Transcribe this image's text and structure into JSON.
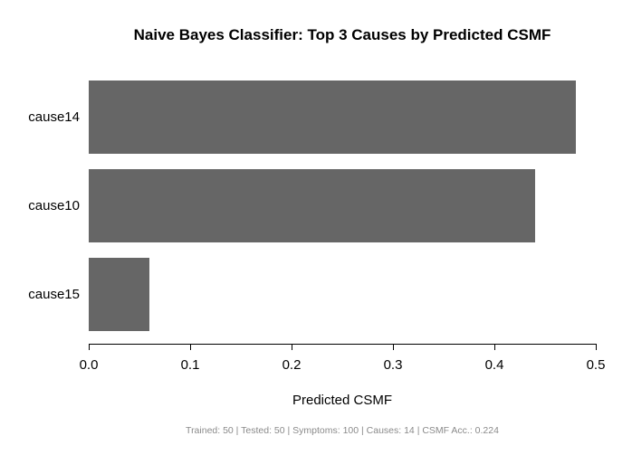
{
  "chart_data": {
    "type": "bar",
    "orientation": "horizontal",
    "title": "Naive Bayes Classifier: Top 3 Causes by Predicted CSMF",
    "categories": [
      "cause14",
      "cause10",
      "cause15"
    ],
    "values": [
      0.48,
      0.44,
      0.06
    ],
    "xlabel": "Predicted CSMF",
    "ylabel": "",
    "xlim": [
      0,
      0.5
    ],
    "xticks": [
      "0.0",
      "0.1",
      "0.2",
      "0.3",
      "0.4",
      "0.5"
    ],
    "grid": false,
    "legend": "none",
    "bar_color": "#666666",
    "axis_color": "#000000",
    "footer": "Trained: 50 | Tested: 50 | Symptoms: 100 | Causes: 14 | CSMF Acc.: 0.224",
    "footer_color": "#8a8a8a"
  }
}
